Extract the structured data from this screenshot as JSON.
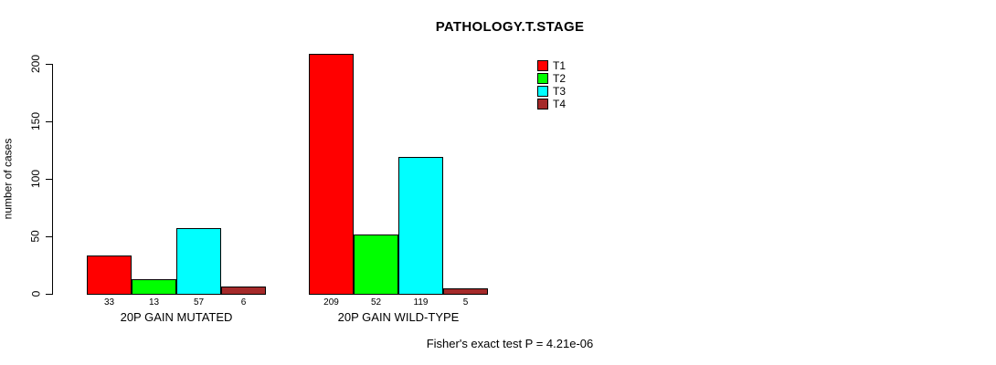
{
  "chart_data": {
    "type": "bar",
    "title": "PATHOLOGY.T.STAGE",
    "xlabel": "",
    "ylabel": "number of cases",
    "categories": [
      "20P GAIN MUTATED",
      "20P GAIN WILD-TYPE"
    ],
    "series": [
      {
        "name": "T1",
        "color": "#ff0000",
        "values": [
          33,
          209
        ]
      },
      {
        "name": "T2",
        "color": "#00ff00",
        "values": [
          13,
          52
        ]
      },
      {
        "name": "T3",
        "color": "#00ffff",
        "values": [
          57,
          119
        ]
      },
      {
        "name": "T4",
        "color": "#a52a2a",
        "values": [
          6,
          5
        ]
      }
    ],
    "yticks": [
      0,
      50,
      100,
      150,
      200
    ],
    "ylim": [
      0,
      209
    ],
    "grid": false,
    "legend_position": "top-right",
    "legend_entries": [
      "T1",
      "T2",
      "T3",
      "T4"
    ],
    "annotation": "Fisher's exact test P = 4.21e-06"
  }
}
